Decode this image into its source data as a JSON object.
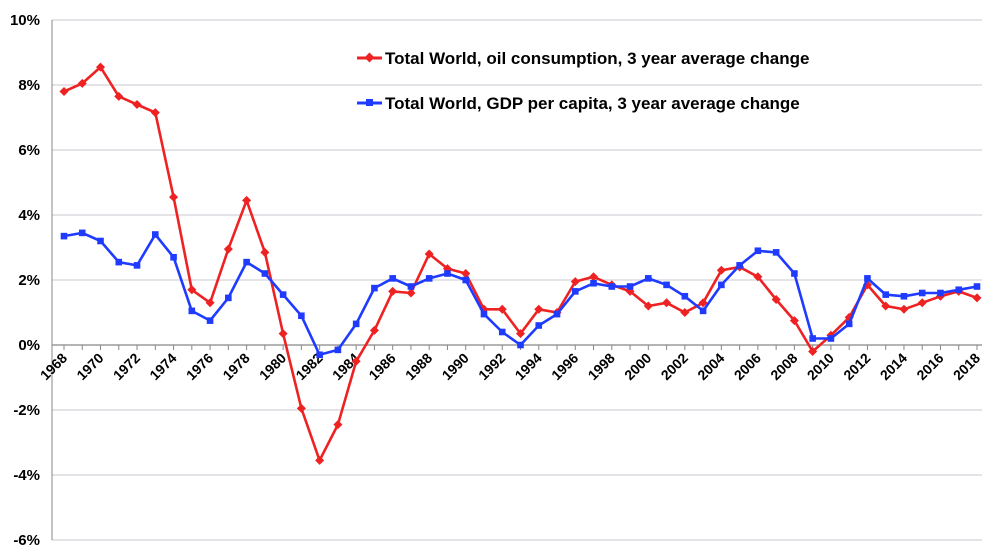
{
  "chart_data": {
    "type": "line",
    "title": "",
    "xlabel": "",
    "ylabel": "",
    "ylim": [
      -6,
      10
    ],
    "yticks": [
      -6,
      -4,
      -2,
      0,
      2,
      4,
      6,
      8,
      10
    ],
    "ytick_labels": [
      "-6%",
      "-4%",
      "-2%",
      "0%",
      "2%",
      "4%",
      "6%",
      "8%",
      "10%"
    ],
    "xlim": [
      1968,
      2018
    ],
    "xtick_labels": [
      "1968",
      "1970",
      "1972",
      "1974",
      "1976",
      "1978",
      "1980",
      "1982",
      "1984",
      "1986",
      "1988",
      "1990",
      "1992",
      "1994",
      "1996",
      "1998",
      "2000",
      "2002",
      "2004",
      "2006",
      "2008",
      "2010",
      "2012",
      "2014",
      "2016",
      "2018"
    ],
    "grid": true,
    "legend_position": "top-center",
    "x": [
      1968,
      1969,
      1970,
      1971,
      1972,
      1973,
      1974,
      1975,
      1976,
      1977,
      1978,
      1979,
      1980,
      1981,
      1982,
      1983,
      1984,
      1985,
      1986,
      1987,
      1988,
      1989,
      1990,
      1991,
      1992,
      1993,
      1994,
      1995,
      1996,
      1997,
      1998,
      1999,
      2000,
      2001,
      2002,
      2003,
      2004,
      2005,
      2006,
      2007,
      2008,
      2009,
      2010,
      2011,
      2012,
      2013,
      2014,
      2015,
      2016,
      2017,
      2018
    ],
    "series": [
      {
        "name": "Total World, oil consumption, 3 year average change",
        "color": "#ee2222",
        "marker": "diamond",
        "values": [
          7.8,
          8.05,
          8.55,
          7.65,
          7.4,
          7.15,
          4.55,
          1.7,
          1.3,
          2.95,
          4.45,
          2.85,
          0.35,
          -1.95,
          -3.55,
          -2.45,
          -0.5,
          0.45,
          1.65,
          1.6,
          2.8,
          2.35,
          2.2,
          1.1,
          1.1,
          0.35,
          1.1,
          1.0,
          1.95,
          2.1,
          1.85,
          1.65,
          1.2,
          1.3,
          1.0,
          1.3,
          2.3,
          2.4,
          2.1,
          1.4,
          0.75,
          -0.2,
          0.3,
          0.85,
          1.85,
          1.2,
          1.1,
          1.3,
          1.5,
          1.65,
          1.45
        ]
      },
      {
        "name": "Total World, GDP per capita, 3 year average change",
        "color": "#1f3bff",
        "marker": "square",
        "values": [
          3.35,
          3.45,
          3.2,
          2.55,
          2.45,
          3.4,
          2.7,
          1.05,
          0.75,
          1.45,
          2.55,
          2.2,
          1.55,
          0.9,
          -0.3,
          -0.15,
          0.65,
          1.75,
          2.05,
          1.8,
          2.05,
          2.2,
          2.0,
          0.95,
          0.4,
          0.0,
          0.6,
          0.95,
          1.65,
          1.9,
          1.8,
          1.8,
          2.05,
          1.85,
          1.5,
          1.05,
          1.85,
          2.45,
          2.9,
          2.85,
          2.2,
          0.2,
          0.2,
          0.65,
          2.05,
          1.55,
          1.5,
          1.6,
          1.6,
          1.7,
          1.8
        ]
      }
    ]
  }
}
